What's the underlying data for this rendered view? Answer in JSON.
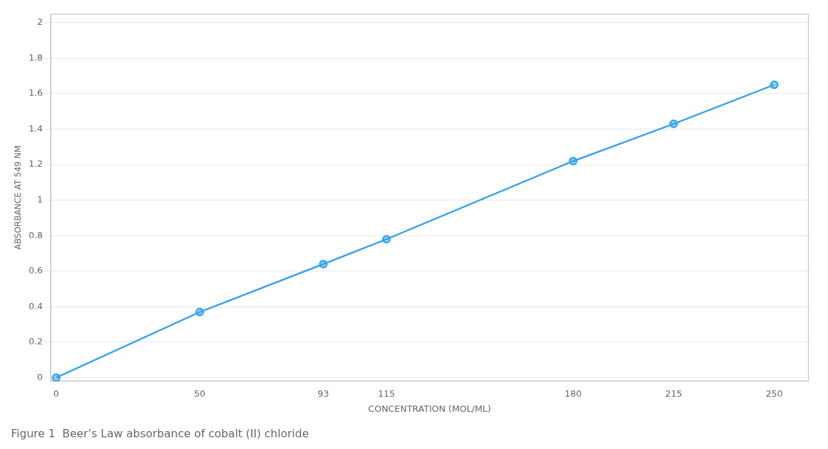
{
  "chart_data": {
    "type": "line",
    "title": "Figure 1  Beer’s Law absorbance of cobalt (II) chloride",
    "x_label": "CONCENTRATION (MOL/ML)",
    "y_label": "ABSORBANCE AT 549 NM",
    "x": [
      0,
      50,
      93,
      115,
      180,
      215,
      250
    ],
    "values": [
      0.0,
      0.37,
      0.64,
      0.78,
      1.22,
      1.43,
      1.65
    ],
    "xlim": [
      -2,
      262
    ],
    "xticks": [
      0,
      50,
      93,
      115,
      180,
      215,
      250
    ],
    "ylim": [
      -0.02,
      2.05
    ],
    "yticks": [
      0,
      0.2,
      0.4,
      0.6,
      0.8,
      1.0,
      1.2,
      1.4,
      1.6,
      1.8,
      2.0
    ],
    "grid": "y",
    "marker": "circle",
    "line_style": "solid"
  }
}
